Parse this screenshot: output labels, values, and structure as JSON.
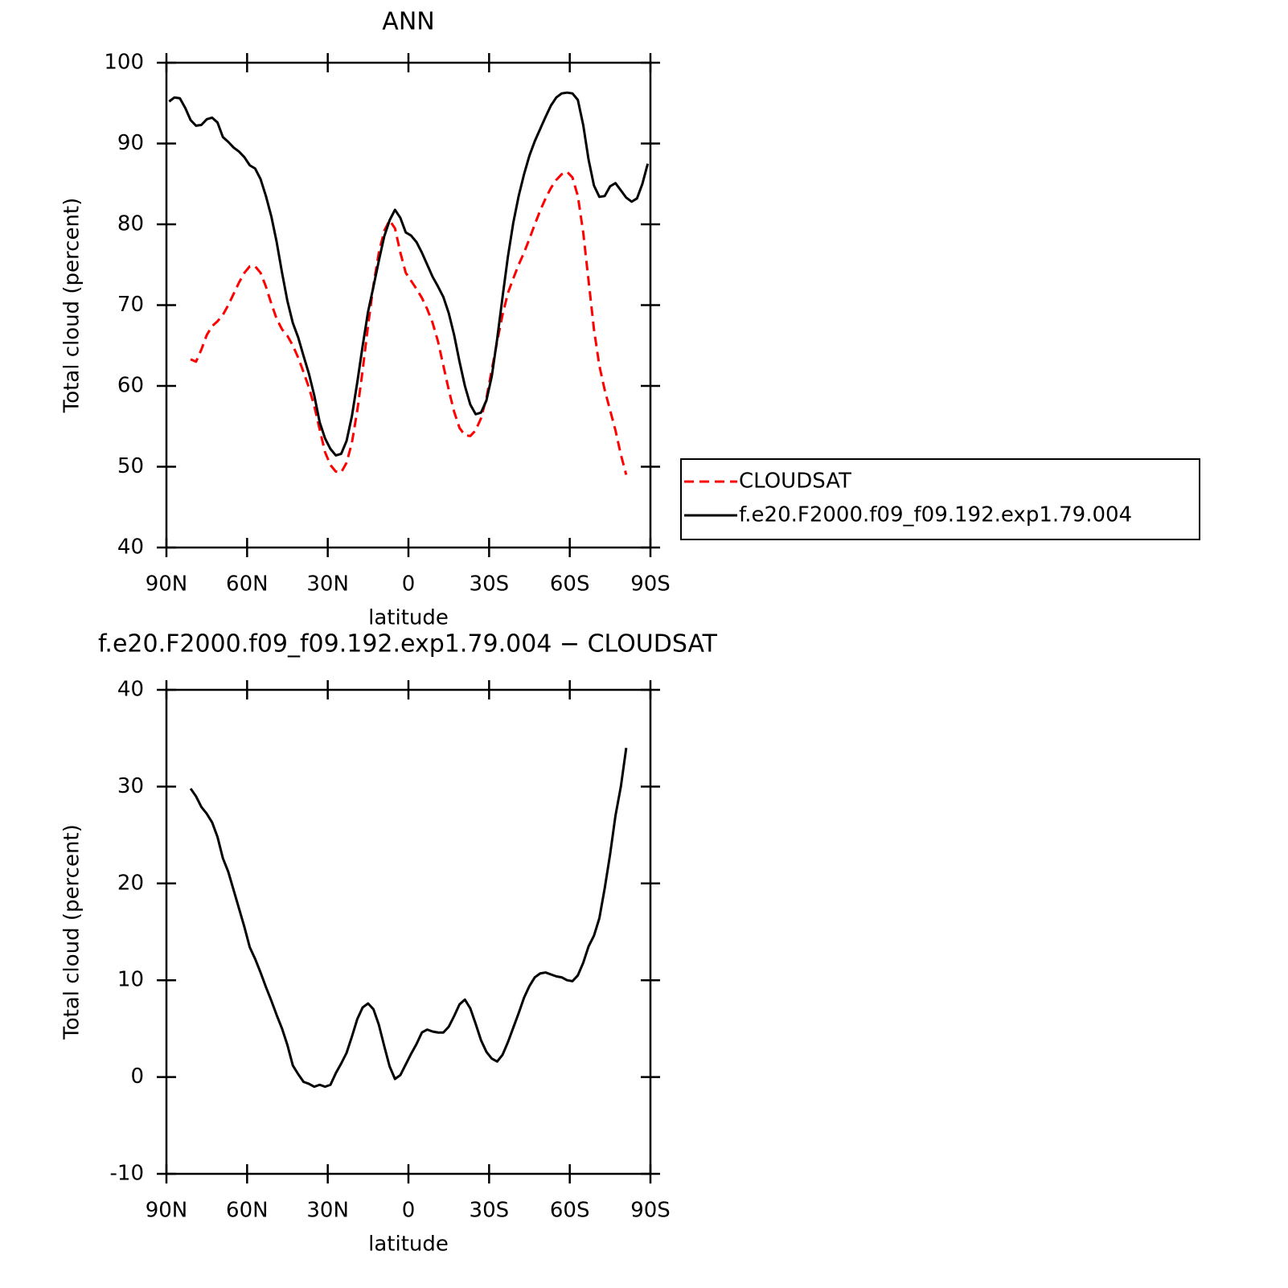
{
  "chart_data": [
    {
      "type": "line",
      "title": "ANN",
      "x_label": "latitude",
      "y_label": "Total cloud (percent)",
      "x": [
        89,
        87,
        85,
        83,
        81,
        79,
        77,
        75,
        73,
        71,
        69,
        67,
        65,
        63,
        61,
        59,
        57,
        55,
        53,
        51,
        49,
        47,
        45,
        43,
        41,
        39,
        37,
        35,
        33,
        31,
        29,
        27,
        25,
        23,
        21,
        19,
        17,
        15,
        13,
        11,
        9,
        7,
        5,
        3,
        1,
        -1,
        -3,
        -5,
        -7,
        -9,
        -11,
        -13,
        -15,
        -17,
        -19,
        -21,
        -23,
        -25,
        -27,
        -29,
        -31,
        -33,
        -35,
        -37,
        -39,
        -41,
        -43,
        -45,
        -47,
        -49,
        -51,
        -53,
        -55,
        -57,
        -59,
        -61,
        -63,
        -65,
        -67,
        -69,
        -71,
        -73,
        -75,
        -77,
        -79,
        -81,
        -83,
        -85,
        -87,
        -89
      ],
      "series": [
        {
          "name": "CLOUDSAT",
          "color": "#ff0000",
          "style": "dashed",
          "values": [
            null,
            null,
            null,
            null,
            63.3,
            63,
            64.5,
            66.3,
            67.4,
            68,
            68.8,
            70,
            71.4,
            72.8,
            74,
            74.8,
            74.8,
            74,
            72.3,
            70.2,
            68.3,
            67,
            66.2,
            65,
            63.5,
            61.7,
            59.8,
            57.5,
            54.6,
            51.8,
            50.2,
            49.4,
            49.3,
            50.5,
            53,
            57,
            62,
            67.5,
            72.5,
            76.5,
            79.2,
            80.5,
            79.5,
            76.5,
            74,
            73,
            72,
            70.9,
            69.5,
            67.8,
            65.5,
            62.5,
            59.5,
            56.8,
            54.8,
            53.9,
            53.8,
            54.5,
            56,
            58.5,
            62,
            65.5,
            68.8,
            71.5,
            73.3,
            75,
            76.5,
            78.2,
            80,
            81.7,
            83.2,
            84.5,
            85.5,
            86.2,
            86.5,
            85.8,
            83.5,
            79,
            73,
            67,
            62.5,
            59.5,
            57,
            54.5,
            51.5,
            49,
            null,
            null,
            null,
            null
          ]
        },
        {
          "name": "f.e20.F2000.f09_f09.192.exp1.79.004",
          "color": "#000000",
          "style": "solid",
          "values": [
            95.2,
            95.7,
            95.6,
            94.4,
            92.9,
            92.2,
            92.3,
            93,
            93.2,
            92.6,
            90.8,
            90.2,
            89.5,
            89,
            88.3,
            87.3,
            86.9,
            85.6,
            83.5,
            81,
            77.8,
            74,
            70.5,
            67.8,
            66,
            63.7,
            61.5,
            58.8,
            55.5,
            53.5,
            52.2,
            51.4,
            51.6,
            53.2,
            56.3,
            60.5,
            65,
            69.2,
            72.3,
            75.5,
            78.5,
            80.5,
            81.8,
            80.8,
            79,
            78.6,
            77.8,
            76.5,
            75,
            73.5,
            72.3,
            71,
            69,
            66.3,
            63,
            60,
            57.7,
            56.5,
            56.7,
            58.2,
            61.2,
            65.8,
            71,
            76,
            80.2,
            83.5,
            86.2,
            88.5,
            90.3,
            91.8,
            93.3,
            94.7,
            95.7,
            96.2,
            96.3,
            96.2,
            95.4,
            92.3,
            88,
            84.8,
            83.4,
            83.5,
            84.7,
            85.1,
            84.2,
            83.3,
            82.8,
            83.2,
            85,
            87.5
          ]
        }
      ],
      "xlim": [
        90,
        -90
      ],
      "xticks": [
        {
          "value": 90,
          "label": "90N"
        },
        {
          "value": 60,
          "label": "60N"
        },
        {
          "value": 30,
          "label": "30N"
        },
        0,
        {
          "value": -30,
          "label": "30S"
        },
        {
          "value": -60,
          "label": "60S"
        },
        {
          "value": -90,
          "label": "90S"
        }
      ],
      "ylim": [
        40,
        100
      ],
      "yticks": [
        40,
        50,
        60,
        70,
        80,
        90,
        100
      ],
      "legend": "right"
    },
    {
      "type": "line",
      "title": "f.e20.F2000.f09_f09.192.exp1.79.004 − CLOUDSAT",
      "x_label": "latitude",
      "y_label": "Total cloud (percent)",
      "x": [
        81,
        79,
        77,
        75,
        73,
        71,
        69,
        67,
        65,
        63,
        61,
        59,
        57,
        55,
        53,
        51,
        49,
        47,
        45,
        43,
        41,
        39,
        37,
        35,
        33,
        31,
        29,
        27,
        25,
        23,
        21,
        19,
        17,
        15,
        13,
        11,
        9,
        7,
        5,
        3,
        1,
        -1,
        -3,
        -5,
        -7,
        -9,
        -11,
        -13,
        -15,
        -17,
        -19,
        -21,
        -23,
        -25,
        -27,
        -29,
        -31,
        -33,
        -35,
        -37,
        -39,
        -41,
        -43,
        -45,
        -47,
        -49,
        -51,
        -53,
        -55,
        -57,
        -59,
        -61,
        -63,
        -65,
        -67,
        -69,
        -71,
        -73,
        -75,
        -77,
        -79,
        -81
      ],
      "series": [
        {
          "color": "#000000",
          "style": "solid",
          "values": [
            29.8,
            29,
            27.9,
            27.2,
            26.3,
            24.8,
            22.6,
            21.2,
            19.3,
            17.4,
            15.5,
            13.4,
            12.2,
            10.8,
            9.3,
            7.9,
            6.4,
            5,
            3.3,
            1.2,
            0.3,
            -0.5,
            -0.7,
            -1,
            -0.8,
            -1,
            -0.8,
            0.4,
            1.4,
            2.5,
            4.2,
            6,
            7.2,
            7.6,
            7,
            5.4,
            3.2,
            1.1,
            -0.2,
            0.2,
            1.3,
            2.4,
            3.4,
            4.6,
            4.9,
            4.7,
            4.6,
            4.6,
            5.2,
            6.3,
            7.5,
            8,
            7.1,
            5.5,
            3.8,
            2.6,
            1.9,
            1.6,
            2.3,
            3.6,
            5.1,
            6.6,
            8.2,
            9.4,
            10.3,
            10.7,
            10.8,
            10.6,
            10.4,
            10.3,
            10,
            9.9,
            10.5,
            11.8,
            13.5,
            14.6,
            16.4,
            19.5,
            23,
            27,
            30,
            34
          ]
        }
      ],
      "xlim": [
        90,
        -90
      ],
      "xticks": [
        {
          "value": 90,
          "label": "90N"
        },
        {
          "value": 60,
          "label": "60N"
        },
        {
          "value": 30,
          "label": "30N"
        },
        0,
        {
          "value": -30,
          "label": "30S"
        },
        {
          "value": -60,
          "label": "60S"
        },
        {
          "value": -90,
          "label": "90S"
        }
      ],
      "ylim": [
        -10,
        40
      ],
      "yticks": [
        -10,
        0,
        10,
        20,
        30,
        40
      ]
    }
  ]
}
